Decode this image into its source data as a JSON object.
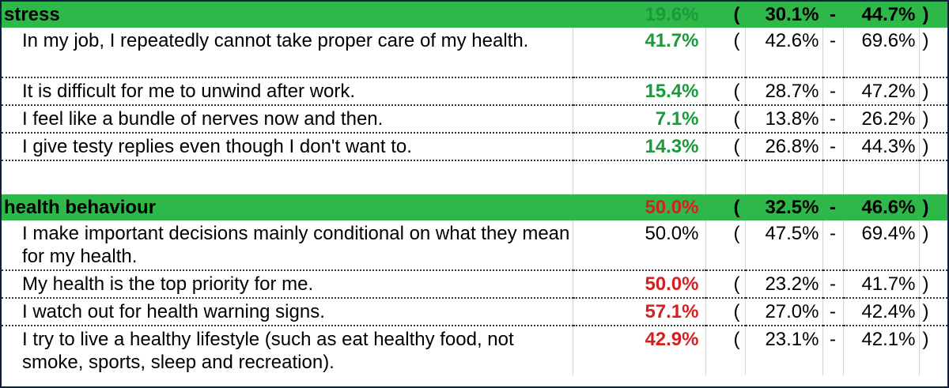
{
  "colors": {
    "header_bg": "#2fb84a",
    "good": "#1a9a3a",
    "bad": "#d61f1f",
    "border": "#0d1f3c"
  },
  "sections": [
    {
      "title": "stress",
      "value": "19.6%",
      "range": {
        "open": "(",
        "low": "30.1%",
        "dash": "-",
        "high": "44.7%",
        "close": ")"
      },
      "items": [
        {
          "text": "In my job, I repeatedly cannot take proper care of my health.",
          "value": "41.7%",
          "low": "42.6%",
          "high": "69.6%"
        },
        {
          "text": "It is difficult for me to unwind after work.",
          "value": "15.4%",
          "low": "28.7%",
          "high": "47.2%"
        },
        {
          "text": "I feel like a bundle of nerves now and then.",
          "value": "7.1%",
          "low": "13.8%",
          "high": "26.2%"
        },
        {
          "text": "I give testy replies even though I don't want to.",
          "value": "14.3%",
          "low": "26.8%",
          "high": "44.3%"
        }
      ]
    },
    {
      "title": "health behaviour",
      "value": "50.0%",
      "range": {
        "open": "(",
        "low": "32.5%",
        "dash": "-",
        "high": "46.6%",
        "close": ")"
      },
      "items": [
        {
          "text": "I make important decisions mainly conditional on what they mean for my health.",
          "value": "50.0%",
          "low": "47.5%",
          "high": "69.4%"
        },
        {
          "text": "My health is the top priority for me.",
          "value": "50.0%",
          "low": "23.2%",
          "high": "41.7%"
        },
        {
          "text": "I watch out for health warning signs.",
          "value": "57.1%",
          "low": "27.0%",
          "high": "42.4%"
        },
        {
          "text": "I try to live a healthy lifestyle (such as eat healthy food, not smoke, sports, sleep and recreation).",
          "value": "42.9%",
          "low": "23.1%",
          "high": "42.1%"
        }
      ]
    }
  ]
}
